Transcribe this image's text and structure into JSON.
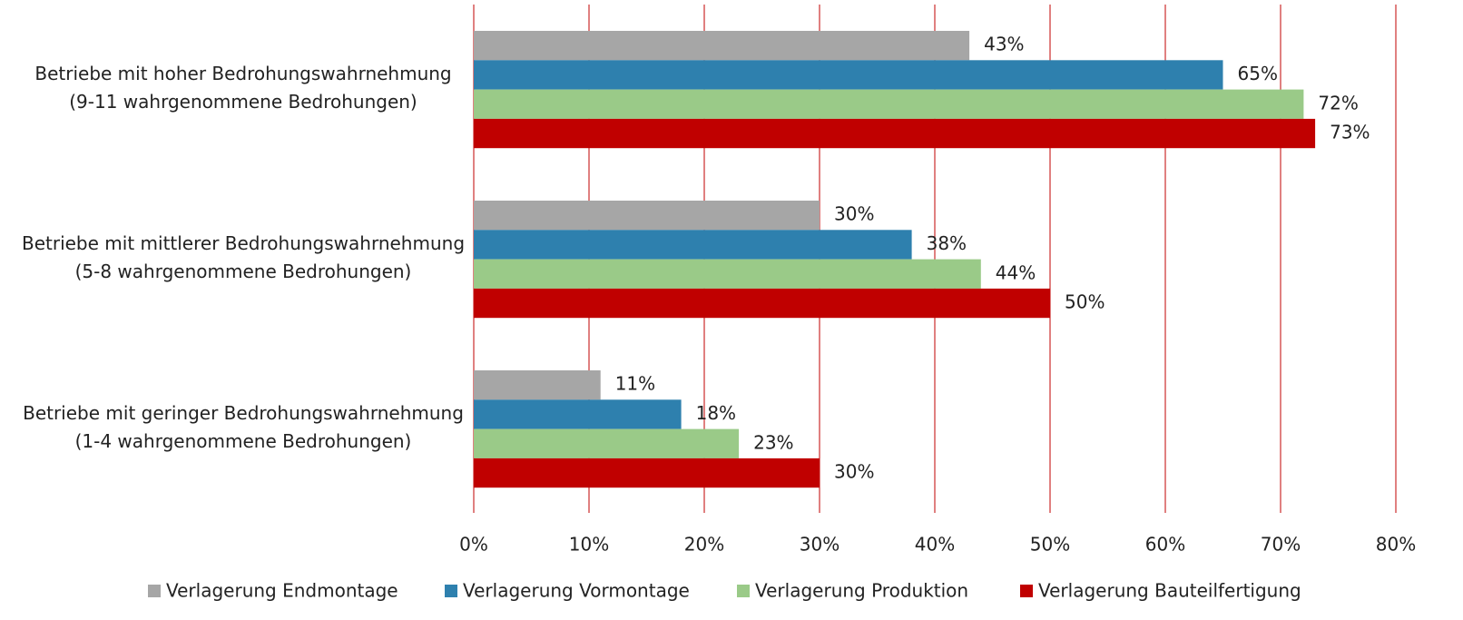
{
  "chart_data": {
    "type": "hbar",
    "categories": [
      [
        "Betriebe mit hoher Bedrohungswahrnehmung",
        "(9-11 wahrgenommene Bedrohungen)"
      ],
      [
        "Betriebe mit mittlerer Bedrohungswahrnehmung",
        "(5-8 wahrgenommene Bedrohungen)"
      ],
      [
        "Betriebe mit geringer Bedrohungswahrnehmung",
        "(1-4 wahrgenommene Bedrohungen)"
      ]
    ],
    "series": [
      {
        "name": "Verlagerung Endmontage",
        "color": "#a6a6a6",
        "values": [
          43,
          30,
          11
        ],
        "value_labels": [
          "43%",
          "30%",
          "11%"
        ]
      },
      {
        "name": "Verlagerung Vormontage",
        "color": "#2e80ae",
        "values": [
          65,
          38,
          18
        ],
        "value_labels": [
          "65%",
          "38%",
          "18%"
        ]
      },
      {
        "name": "Verlagerung Produktion",
        "color": "#9aca88",
        "values": [
          72,
          44,
          23
        ],
        "value_labels": [
          "72%",
          "44%",
          "23%"
        ]
      },
      {
        "name": "Verlagerung Bauteilfertigung",
        "color": "#c00000",
        "values": [
          73,
          50,
          30
        ],
        "value_labels": [
          "73%",
          "50%",
          "30%"
        ]
      }
    ],
    "xlim": [
      0,
      80
    ],
    "xticks": [
      {
        "value": 0,
        "label": "0%"
      },
      {
        "value": 10,
        "label": "10%"
      },
      {
        "value": 20,
        "label": "20%"
      },
      {
        "value": 30,
        "label": "30%"
      },
      {
        "value": 40,
        "label": "40%"
      },
      {
        "value": 50,
        "label": "50%"
      },
      {
        "value": 60,
        "label": "60%"
      },
      {
        "value": 70,
        "label": "70%"
      },
      {
        "value": 80,
        "label": "80%"
      }
    ],
    "grid": true,
    "grid_color": "#c00000",
    "legend": "bottom"
  }
}
